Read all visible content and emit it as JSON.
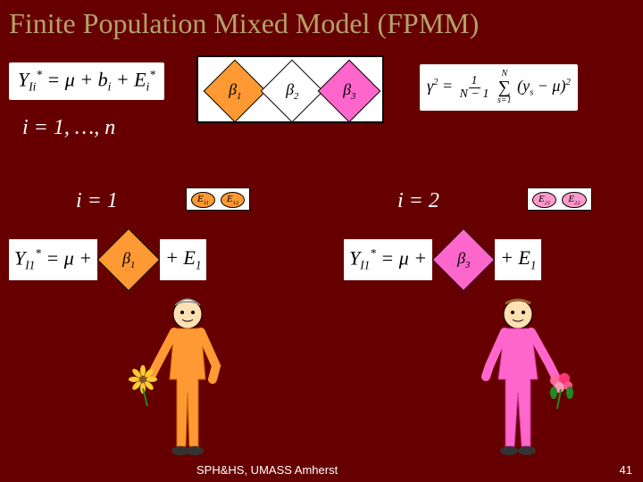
{
  "title": "Finite Population Mixed Model (FPMM)",
  "equations": {
    "top_left": "Y<sub>Ii</sub><sup>*</sup> = μ + b<sub>i</sub> + E<sub>i</sub><sup>*</sup>",
    "i_range": "i = 1, …, n",
    "i1": "i = 1",
    "i2": "i = 2",
    "gamma": "γ<sup>2</sup> = ",
    "gamma_num": "1",
    "gamma_den": "N − 1",
    "gamma_sum_top": "N",
    "gamma_sum_bot": "s=1",
    "gamma_term": "(y<sub>s</sub> − μ)<sup>2</sup>",
    "y1_lhs": "Y<sub>I1</sub><sup>*</sup> = μ +",
    "y1_rhs": "+ E<sub>1</sub>",
    "y2_lhs": "Y<sub>I1</sub><sup>*</sup> = μ +",
    "y2_rhs": "+ E<sub>1</sub>"
  },
  "betas": {
    "b1": "β<sub>1</sub>",
    "b2": "β<sub>2</sub>",
    "b3": "β<sub>3</sub>",
    "b1_color": "#ff9933",
    "b2_color": "#ffffff",
    "b3_color": "#ff66cc"
  },
  "errors": {
    "left_e1": "E<sub>11</sub>",
    "left_e2": "E<sub>12</sub>",
    "right_e1": "E<sub>21</sub>",
    "right_e2": "E<sub>22</sub>",
    "left_color": "#ff9933",
    "right_color": "#ff99cc"
  },
  "figures": {
    "left_color": "#ff9933",
    "right_color": "#ff66cc",
    "flower_left": "#ffcc33",
    "flower_right": "#ff6699"
  },
  "footer": "SPH&HS, UMASS  Amherst",
  "page": "41",
  "colors": {
    "bg": "#660000",
    "title": "#b5a26a"
  }
}
